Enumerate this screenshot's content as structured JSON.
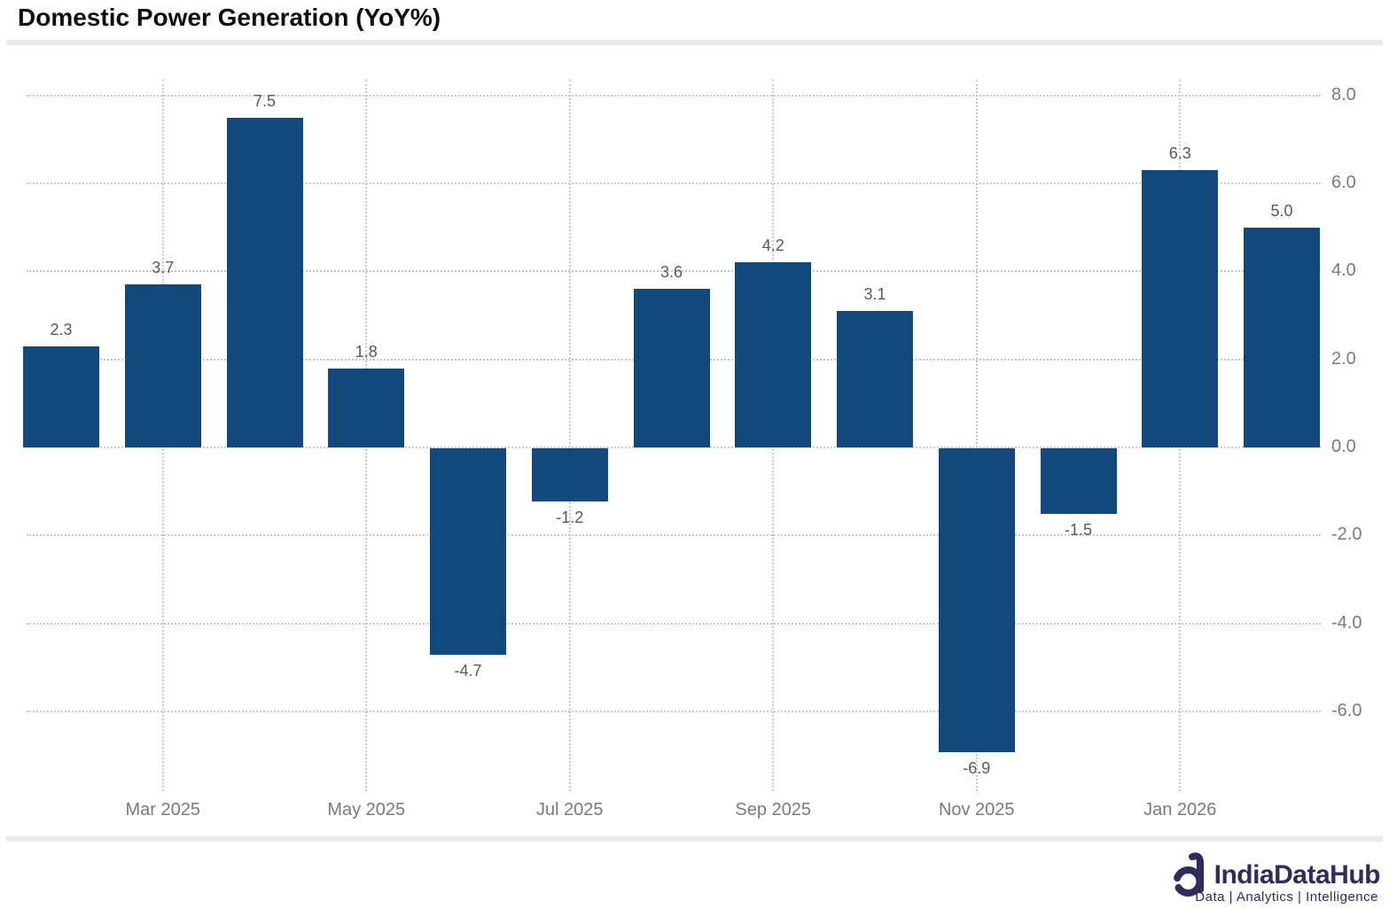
{
  "header": {
    "title": "Domestic Power Generation (YoY%)"
  },
  "footer": {
    "logo_text": "IndiaDataHub",
    "tagline": "Data | Analytics | Intelligence",
    "logo_color": "#2e2b5f"
  },
  "chart_data": {
    "type": "bar",
    "title": "Domestic Power Generation (YoY%)",
    "values": [
      2.3,
      3.7,
      7.5,
      1.8,
      -4.7,
      -1.2,
      3.6,
      4.2,
      3.1,
      -6.9,
      -1.5,
      6.3,
      5.0
    ],
    "data_labels": [
      "2.3",
      "3.7",
      "7.5",
      "1.8",
      "-4.7",
      "-1.2",
      "3.6",
      "4.2",
      "3.1",
      "-6.9",
      "-1.5",
      "6.3",
      "5.0"
    ],
    "x_ticks": [
      {
        "bar_index": 1,
        "label": "Mar 2025"
      },
      {
        "bar_index": 3,
        "label": "May 2025"
      },
      {
        "bar_index": 5,
        "label": "Jul 2025"
      },
      {
        "bar_index": 7,
        "label": "Sep 2025"
      },
      {
        "bar_index": 9,
        "label": "Nov 2025"
      },
      {
        "bar_index": 11,
        "label": "Jan 2026"
      }
    ],
    "y_ticks": [
      {
        "value": 8,
        "label": "8.0"
      },
      {
        "value": 6,
        "label": "6.0"
      },
      {
        "value": 4,
        "label": "4.0"
      },
      {
        "value": 2,
        "label": "2.0"
      },
      {
        "value": 0,
        "label": "0.0"
      },
      {
        "value": -2,
        "label": "-2.0"
      },
      {
        "value": -4,
        "label": "-4.0"
      },
      {
        "value": -6,
        "label": "-6.0"
      }
    ],
    "ylim": [
      -8.0,
      8.5
    ],
    "bar_color": "#11497D",
    "grid": "dotted",
    "gridline_color": "#c9c9c9",
    "axis_label_color": "#7a7a7a",
    "data_label_color": "#595959",
    "legend": "none",
    "y_axis_side": "right"
  }
}
